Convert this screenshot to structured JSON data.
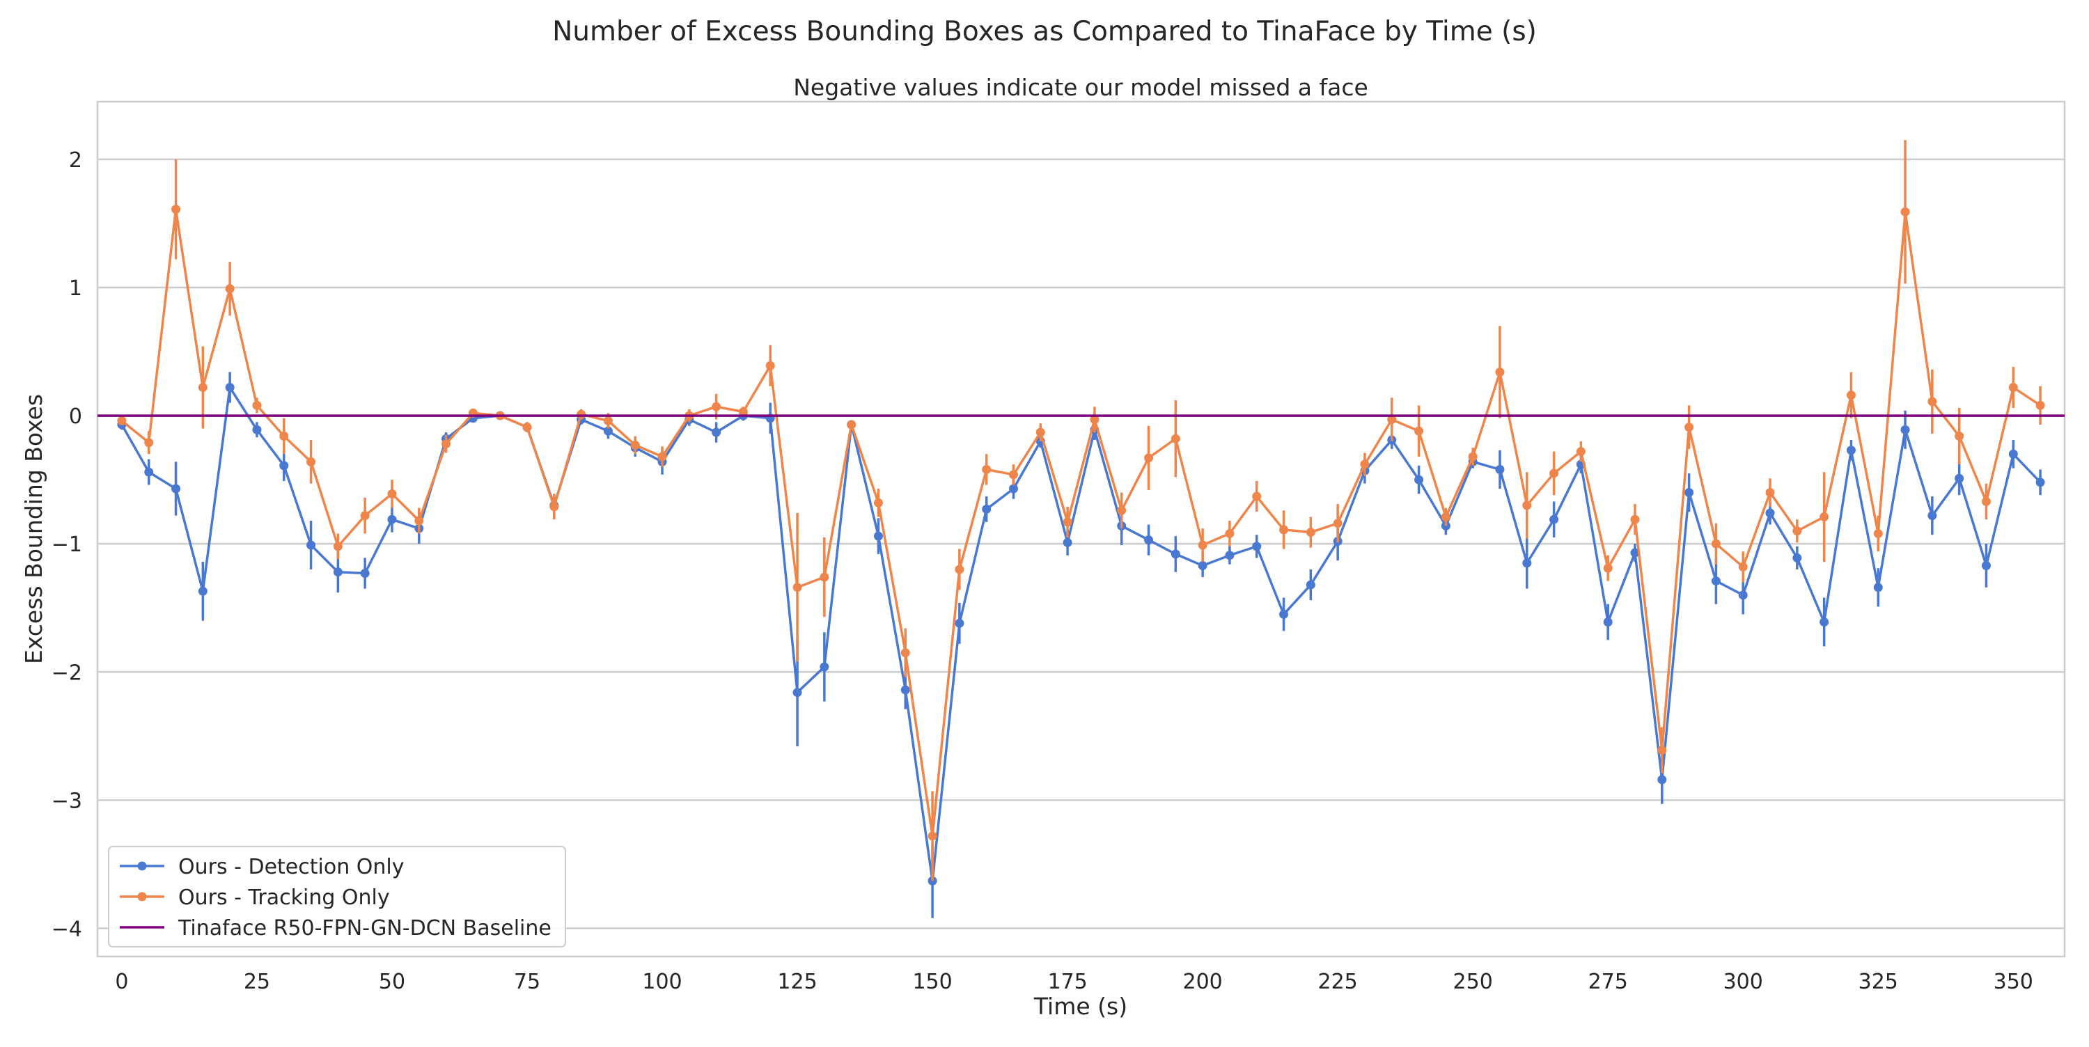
{
  "chart_data": {
    "type": "line",
    "title": "Number of Excess Bounding Boxes as Compared to TinaFace by Time (s)",
    "subtitle": "Negative values indicate our model missed a face",
    "xlabel": "Time (s)",
    "ylabel": "Excess Bounding Boxes",
    "xlim": [
      -4.5,
      359.5
    ],
    "ylim": [
      -4.22,
      2.45
    ],
    "xticks": [
      0,
      25,
      50,
      75,
      100,
      125,
      150,
      175,
      200,
      225,
      250,
      275,
      300,
      325,
      350
    ],
    "yticks": [
      -4,
      -3,
      -2,
      -1,
      0,
      1,
      2
    ],
    "grid": "horizontal",
    "legend_position": "bottom-left",
    "x": [
      0,
      5,
      10,
      15,
      20,
      25,
      30,
      35,
      40,
      45,
      50,
      55,
      60,
      65,
      70,
      75,
      80,
      85,
      90,
      95,
      100,
      105,
      110,
      115,
      120,
      125,
      130,
      135,
      140,
      145,
      150,
      155,
      160,
      165,
      170,
      175,
      180,
      185,
      190,
      195,
      200,
      205,
      210,
      215,
      220,
      225,
      230,
      235,
      240,
      245,
      250,
      255,
      260,
      265,
      270,
      275,
      280,
      285,
      290,
      295,
      300,
      305,
      310,
      315,
      320,
      325,
      330,
      335,
      340,
      345,
      350,
      355
    ],
    "series": [
      {
        "name": "Ours - Detection Only",
        "color": "#4878d0",
        "values": [
          -0.07,
          -0.44,
          -0.57,
          -1.37,
          0.22,
          -0.11,
          -0.39,
          -1.01,
          -1.22,
          -1.23,
          -0.81,
          -0.88,
          -0.18,
          -0.02,
          0.0,
          -0.09,
          -0.7,
          -0.03,
          -0.12,
          -0.25,
          -0.36,
          -0.03,
          -0.13,
          0.0,
          -0.02,
          -2.16,
          -1.96,
          -0.07,
          -0.94,
          -2.14,
          -3.63,
          -1.62,
          -0.73,
          -0.57,
          -0.2,
          -0.99,
          -0.11,
          -0.86,
          -0.97,
          -1.08,
          -1.17,
          -1.09,
          -1.02,
          -1.55,
          -1.32,
          -0.98,
          -0.43,
          -0.19,
          -0.5,
          -0.86,
          -0.36,
          -0.42,
          -1.15,
          -0.81,
          -0.38,
          -1.61,
          -1.07,
          -2.84,
          -0.6,
          -1.29,
          -1.4,
          -0.76,
          -1.11,
          -1.61,
          -0.27,
          -1.34,
          -0.11,
          -0.78,
          -0.49,
          -1.17,
          -0.3,
          -0.52
        ],
        "error": [
          0.04,
          0.1,
          0.21,
          0.23,
          0.12,
          0.06,
          0.12,
          0.19,
          0.16,
          0.12,
          0.1,
          0.12,
          0.05,
          0.03,
          0.02,
          0.04,
          0.08,
          0.04,
          0.06,
          0.07,
          0.1,
          0.05,
          0.08,
          0.04,
          0.12,
          0.42,
          0.27,
          0.03,
          0.14,
          0.15,
          0.29,
          0.16,
          0.1,
          0.08,
          0.05,
          0.1,
          0.08,
          0.15,
          0.12,
          0.14,
          0.09,
          0.07,
          0.09,
          0.13,
          0.12,
          0.15,
          0.1,
          0.07,
          0.11,
          0.07,
          0.05,
          0.15,
          0.2,
          0.14,
          0.07,
          0.14,
          0.07,
          0.19,
          0.15,
          0.18,
          0.15,
          0.09,
          0.09,
          0.19,
          0.08,
          0.15,
          0.15,
          0.15,
          0.13,
          0.17,
          0.11,
          0.1
        ]
      },
      {
        "name": "Ours - Tracking Only",
        "color": "#ee854a",
        "values": [
          -0.04,
          -0.21,
          1.61,
          0.22,
          0.99,
          0.08,
          -0.16,
          -0.36,
          -1.02,
          -0.78,
          -0.61,
          -0.82,
          -0.22,
          0.02,
          0.0,
          -0.09,
          -0.71,
          0.01,
          -0.04,
          -0.23,
          -0.32,
          0.0,
          0.07,
          0.03,
          0.39,
          -1.34,
          -1.26,
          -0.07,
          -0.68,
          -1.85,
          -3.28,
          -1.2,
          -0.42,
          -0.46,
          -0.13,
          -0.83,
          -0.03,
          -0.74,
          -0.33,
          -0.18,
          -1.01,
          -0.92,
          -0.63,
          -0.89,
          -0.91,
          -0.84,
          -0.38,
          -0.03,
          -0.12,
          -0.79,
          -0.32,
          0.34,
          -0.7,
          -0.45,
          -0.28,
          -1.19,
          -0.81,
          -2.61,
          -0.09,
          -1.0,
          -1.18,
          -0.6,
          -0.9,
          -0.79,
          0.16,
          -0.92,
          1.59,
          0.11,
          -0.16,
          -0.67,
          0.22,
          0.08
        ],
        "error": [
          0.03,
          0.09,
          0.39,
          0.32,
          0.21,
          0.06,
          0.14,
          0.17,
          0.1,
          0.14,
          0.11,
          0.1,
          0.07,
          0.03,
          0.02,
          0.04,
          0.1,
          0.04,
          0.06,
          0.07,
          0.08,
          0.05,
          0.1,
          0.04,
          0.16,
          0.58,
          0.31,
          0.03,
          0.11,
          0.19,
          0.35,
          0.16,
          0.12,
          0.08,
          0.07,
          0.12,
          0.1,
          0.14,
          0.25,
          0.3,
          0.13,
          0.1,
          0.12,
          0.15,
          0.12,
          0.15,
          0.09,
          0.17,
          0.2,
          0.07,
          0.07,
          0.36,
          0.26,
          0.17,
          0.08,
          0.1,
          0.12,
          0.18,
          0.17,
          0.16,
          0.12,
          0.11,
          0.09,
          0.35,
          0.18,
          0.14,
          0.56,
          0.25,
          0.22,
          0.14,
          0.16,
          0.15
        ]
      },
      {
        "name": "Tinaface R50-FPN-GN-DCN Baseline",
        "color": "#800080",
        "constant": 0
      }
    ]
  }
}
